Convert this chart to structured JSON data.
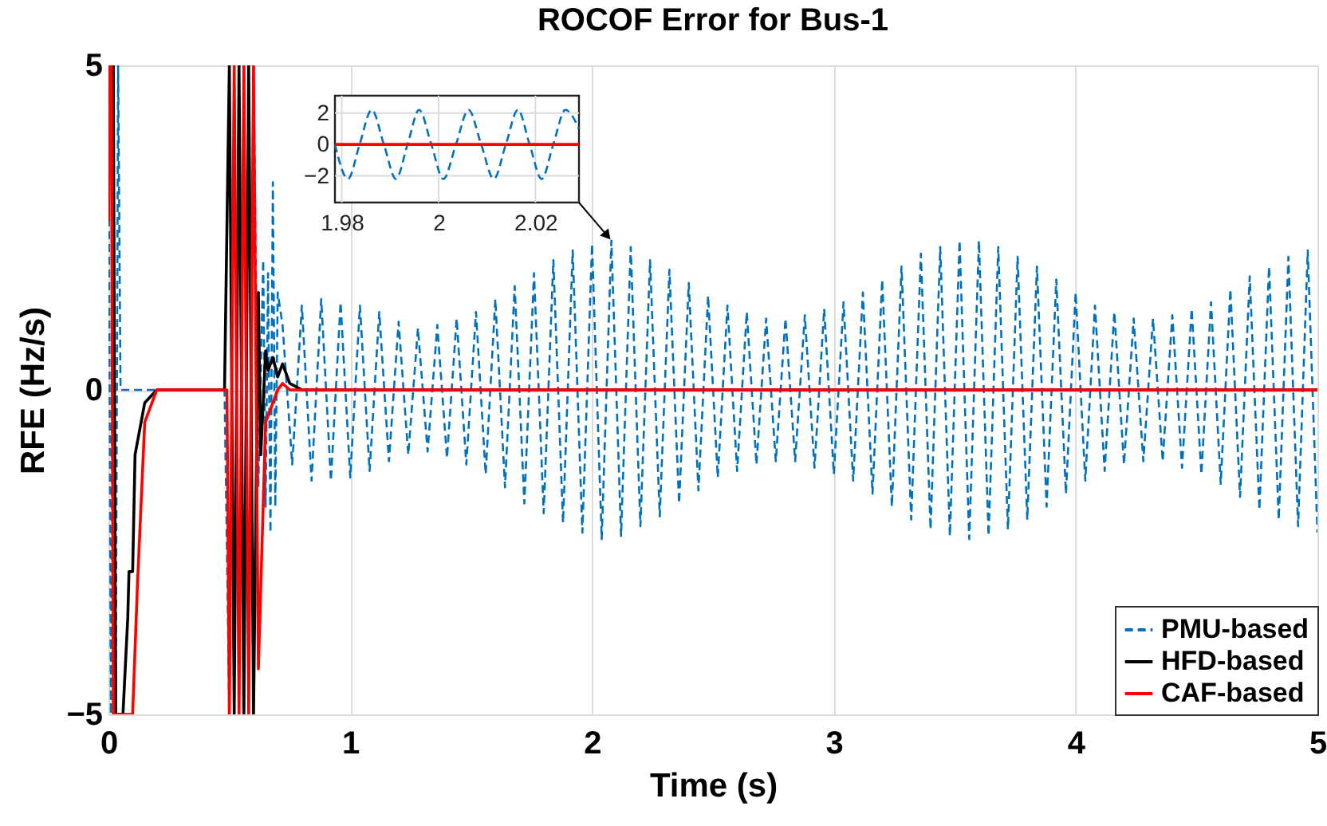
{
  "chart_data": [
    {
      "type": "line",
      "title": "ROCOF Error for Bus-1",
      "xlabel": "Time (s)",
      "ylabel": "RFE (Hz/s)",
      "xlim": [
        0,
        5
      ],
      "ylim": [
        -5,
        5
      ],
      "xticks": [
        0,
        1,
        2,
        3,
        4,
        5
      ],
      "yticks": [
        -5,
        0,
        5
      ],
      "grid": true,
      "legend": "bottom right",
      "marker": "none",
      "series": [
        {
          "name": "PMU-based",
          "color": "#0072bd",
          "line_style": "dashed",
          "x": [
            0,
            0.01,
            0.02,
            0.03,
            0.04,
            0.05,
            0.1,
            0.48,
            0.5,
            0.52,
            0.54,
            0.56,
            0.58,
            0.6,
            0.62,
            0.64,
            0.65,
            0.66,
            0.67,
            0.68,
            0.69,
            0.7,
            0.72,
            0.76,
            0.8,
            0.84,
            0.88,
            0.92,
            0.96,
            1.0,
            1.04,
            1.08,
            1.12,
            1.16,
            1.2,
            1.24,
            1.28,
            1.32,
            1.36,
            1.4,
            1.44,
            1.48,
            1.52,
            1.56,
            1.6,
            1.64,
            1.68,
            1.72,
            1.76,
            1.8,
            1.84,
            1.88,
            1.92,
            1.96,
            2.0,
            2.04,
            2.08,
            2.12,
            2.16,
            2.2,
            2.24,
            2.28,
            2.32,
            2.36,
            2.4,
            2.44,
            2.48,
            2.52,
            2.56,
            2.6,
            2.64,
            2.68,
            2.72,
            2.76,
            2.8,
            2.84,
            2.88,
            2.92,
            2.96,
            3.0,
            3.04,
            3.08,
            3.12,
            3.16,
            3.2,
            3.24,
            3.28,
            3.32,
            3.36,
            3.4,
            3.44,
            3.48,
            3.52,
            3.56,
            3.6,
            3.64,
            3.68,
            3.72,
            3.76,
            3.8,
            3.84,
            3.88,
            3.92,
            3.96,
            4.0,
            4.04,
            4.08,
            4.12,
            4.16,
            4.2,
            4.24,
            4.28,
            4.32,
            4.36,
            4.4,
            4.44,
            4.48,
            4.52,
            4.56,
            4.6,
            4.64,
            4.68,
            4.72,
            4.76,
            4.8,
            4.84,
            4.88,
            4.92,
            4.96,
            5.0
          ],
          "values": [
            5,
            -5,
            5,
            -5,
            5,
            0,
            0,
            0,
            -5,
            5,
            -5,
            5,
            -5,
            5,
            -1.5,
            2.0,
            -1.8,
            1.8,
            -2.2,
            3.2,
            -1.8,
            1.5,
            1.0,
            -1.15,
            1.3,
            -1.4,
            1.4,
            -1.4,
            1.35,
            -1.35,
            1.3,
            -1.25,
            1.2,
            -1.1,
            1.05,
            -1.0,
            0.95,
            -0.95,
            1.0,
            -1.05,
            1.1,
            -1.15,
            1.2,
            -1.3,
            1.4,
            -1.5,
            1.6,
            -1.75,
            1.8,
            -1.9,
            2.0,
            -2.05,
            2.15,
            -2.2,
            2.25,
            -2.3,
            2.3,
            -2.25,
            2.2,
            -2.1,
            2.0,
            -1.95,
            1.85,
            -1.75,
            1.65,
            -1.55,
            1.45,
            -1.35,
            1.3,
            -1.25,
            1.2,
            -1.15,
            1.1,
            -1.1,
            1.1,
            -1.1,
            1.15,
            -1.2,
            1.25,
            -1.3,
            1.35,
            -1.4,
            1.5,
            -1.6,
            1.7,
            -1.8,
            1.9,
            -2.0,
            2.1,
            -2.15,
            2.2,
            -2.25,
            2.3,
            -2.3,
            2.3,
            -2.25,
            2.2,
            -2.15,
            2.05,
            -2.0,
            1.9,
            -1.8,
            1.7,
            -1.6,
            1.5,
            -1.4,
            1.3,
            -1.25,
            1.2,
            -1.15,
            1.1,
            -1.1,
            1.1,
            -1.1,
            1.15,
            -1.2,
            1.25,
            -1.3,
            1.35,
            -1.45,
            1.55,
            -1.65,
            1.75,
            -1.85,
            1.9,
            -2.0,
            2.05,
            -2.1,
            2.15,
            -2.2
          ]
        },
        {
          "name": "HFD-based",
          "color": "#000000",
          "line_style": "solid",
          "x": [
            0,
            0.005,
            0.02,
            0.03,
            0.05,
            0.06,
            0.08,
            0.085,
            0.1,
            0.11,
            0.15,
            0.2,
            0.48,
            0.5,
            0.52,
            0.54,
            0.56,
            0.58,
            0.6,
            0.62,
            0.63,
            0.65,
            0.66,
            0.68,
            0.7,
            0.72,
            0.75,
            0.8,
            5
          ],
          "values": [
            2.6,
            5,
            5,
            -5,
            -5,
            -5,
            -3.5,
            -2.8,
            -2.8,
            -1,
            -0.2,
            0,
            0,
            5,
            -5,
            5,
            -5,
            5,
            -5,
            1.5,
            -1,
            0.6,
            0.3,
            0.5,
            0.2,
            0.4,
            0.1,
            0,
            0
          ]
        },
        {
          "name": "CAF-based",
          "color": "#ff0000",
          "line_style": "solid",
          "x": [
            0,
            0.005,
            0.012,
            0.02,
            0.1,
            0.12,
            0.15,
            0.2,
            0.49,
            0.5,
            0.52,
            0.54,
            0.56,
            0.58,
            0.6,
            0.62,
            0.65,
            0.7,
            0.72,
            0.75,
            5
          ],
          "values": [
            2.6,
            5,
            5,
            -5,
            -5,
            -3,
            -0.5,
            0,
            0,
            -5,
            5,
            -5,
            5,
            -5,
            5,
            -4.3,
            -0.5,
            0,
            0.1,
            0,
            0
          ]
        }
      ]
    },
    {
      "type": "line",
      "xlim": [
        1.9786,
        2.029
      ],
      "ylim": [
        -3.7,
        3.1
      ],
      "xticks": [
        1.98,
        2,
        2.02
      ],
      "yticks": [
        -2,
        0,
        2
      ],
      "grid": true,
      "marker": "none",
      "series": [
        {
          "color": "#0072bd",
          "line_style": "dashed",
          "x": [
            1.9786,
            1.9813,
            1.9837,
            1.9862,
            1.9887,
            1.9912,
            1.9936,
            1.996,
            1.9985,
            2.001,
            2.0036,
            2.0062,
            2.0088,
            2.0114,
            2.0139,
            2.0164,
            2.0188,
            2.0213,
            2.0237,
            2.0262,
            2.029
          ],
          "values": [
            0,
            -2.2,
            0,
            2.2,
            0,
            -2.2,
            0,
            2.2,
            0,
            -2.2,
            0,
            2.2,
            0,
            -2.2,
            0,
            2.2,
            0,
            -2.2,
            0,
            2.2,
            1.0
          ]
        },
        {
          "color": "#ff0000",
          "line_style": "solid",
          "x": [
            1.9786,
            2.029
          ],
          "values": [
            0,
            0
          ]
        }
      ]
    }
  ]
}
